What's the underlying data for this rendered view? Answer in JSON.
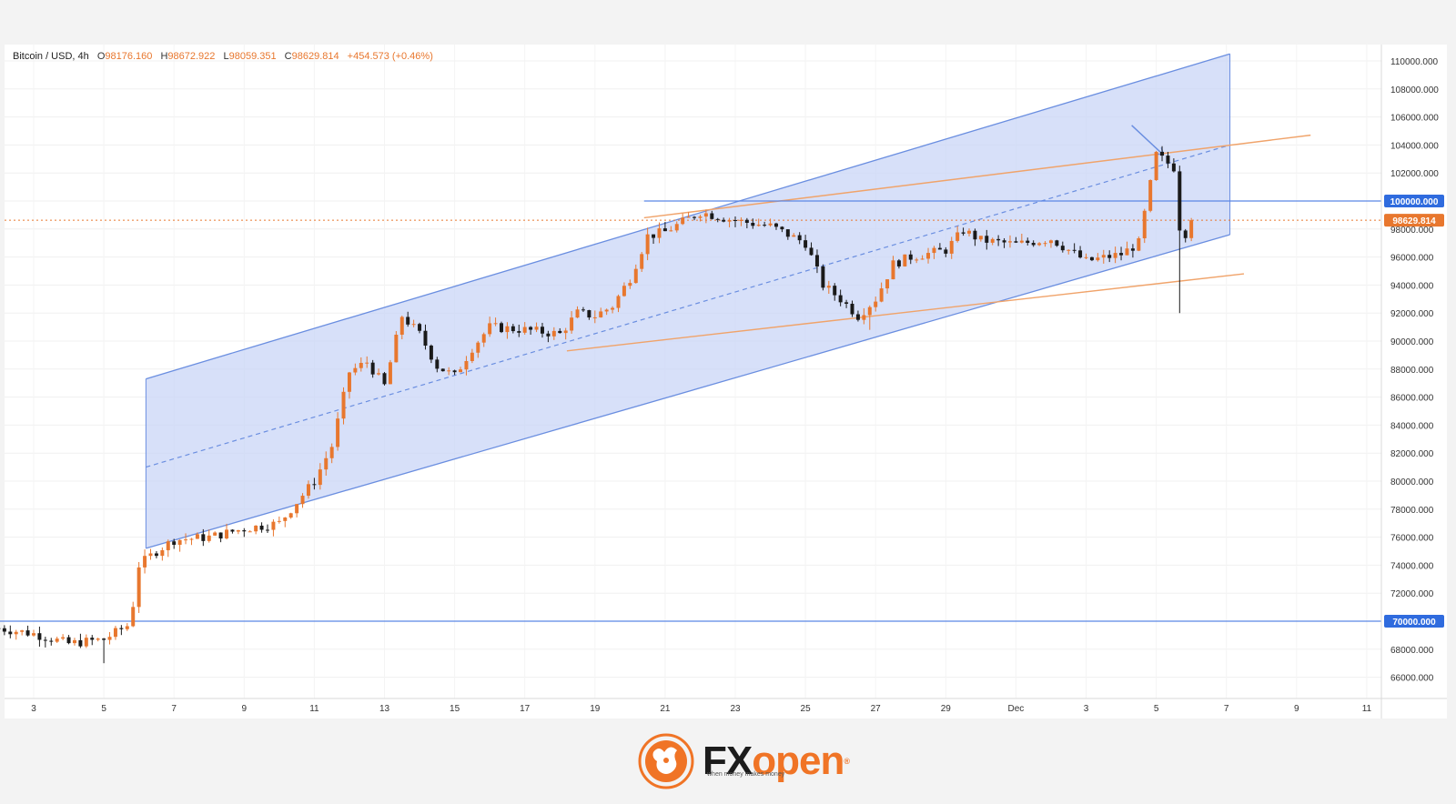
{
  "header": {
    "symbol": "Bitcoin / USD, 4h",
    "o_label": "O",
    "o_value": "98176.160",
    "h_label": "H",
    "h_value": "98672.922",
    "l_label": "L",
    "l_value": "98059.351",
    "c_label": "C",
    "c_value": "98629.814",
    "change": "+454.573 (+0.46%)"
  },
  "logo": {
    "brand_fx": "FX",
    "brand_open": "open",
    "reg": "®",
    "tagline": "when money makes money"
  },
  "colors": {
    "up": "#e8772e",
    "down": "#1a1a1a",
    "channel_fill": "#c9d6f7",
    "channel_line": "#6a8ee0",
    "orange_line": "#f0a36a",
    "level_line": "#5b86e5",
    "price_tag": "#e8772e",
    "level_tag": "#2f6bde"
  },
  "chart_data": {
    "type": "candlestick",
    "symbol": "Bitcoin / USD",
    "timeframe": "4h",
    "ylim": [
      64000,
      111000
    ],
    "y_ticks": [
      110000,
      108000,
      106000,
      104000,
      102000,
      100000,
      98000,
      96000,
      94000,
      92000,
      90000,
      88000,
      86000,
      84000,
      82000,
      80000,
      78000,
      76000,
      74000,
      72000,
      70000,
      68000,
      66000
    ],
    "y_tick_labels": [
      "110000.000",
      "108000.000",
      "106000.000",
      "104000.000",
      "102000.000",
      "100000.000",
      "98000.000",
      "96000.000",
      "94000.000",
      "92000.000",
      "90000.000",
      "88000.000",
      "86000.000",
      "84000.000",
      "82000.000",
      "80000.000",
      "78000.000",
      "76000.000",
      "74000.000",
      "72000.000",
      "70000.000",
      "68000.000",
      "66000.000"
    ],
    "x_ticks": [
      {
        "label": "3",
        "day": 3
      },
      {
        "label": "5",
        "day": 5
      },
      {
        "label": "7",
        "day": 7
      },
      {
        "label": "9",
        "day": 9
      },
      {
        "label": "11",
        "day": 11
      },
      {
        "label": "13",
        "day": 13
      },
      {
        "label": "15",
        "day": 15
      },
      {
        "label": "17",
        "day": 17
      },
      {
        "label": "19",
        "day": 19
      },
      {
        "label": "21",
        "day": 21
      },
      {
        "label": "23",
        "day": 23
      },
      {
        "label": "25",
        "day": 25
      },
      {
        "label": "27",
        "day": 27
      },
      {
        "label": "29",
        "day": 29
      },
      {
        "label": "Dec",
        "day": 31
      },
      {
        "label": "3",
        "day": 33
      },
      {
        "label": "5",
        "day": 35
      },
      {
        "label": "7",
        "day": 37
      },
      {
        "label": "9",
        "day": 39
      },
      {
        "label": "11",
        "day": 41
      }
    ],
    "x_unit": "day (November; 31 = Dec 1)",
    "daily_closes": [
      [
        2,
        69500
      ],
      [
        3,
        69100
      ],
      [
        4,
        68400
      ],
      [
        5,
        68700
      ],
      [
        5.75,
        69800
      ],
      [
        6,
        74000
      ],
      [
        6.5,
        75000
      ],
      [
        7,
        75800
      ],
      [
        8,
        76000
      ],
      [
        9,
        76600
      ],
      [
        10,
        77000
      ],
      [
        10.5,
        78500
      ],
      [
        11,
        80000
      ],
      [
        11.5,
        82500
      ],
      [
        12,
        87800
      ],
      [
        12.5,
        88500
      ],
      [
        13,
        86800
      ],
      [
        13.5,
        91800
      ],
      [
        14,
        90500
      ],
      [
        14.5,
        88200
      ],
      [
        15,
        87500
      ],
      [
        15.5,
        89500
      ],
      [
        16,
        91000
      ],
      [
        17,
        90800
      ],
      [
        18,
        90500
      ],
      [
        18.5,
        92000
      ],
      [
        19,
        91800
      ],
      [
        19.5,
        92500
      ],
      [
        20,
        94500
      ],
      [
        20.5,
        97500
      ],
      [
        21,
        97800
      ],
      [
        22,
        99200
      ],
      [
        23,
        98600
      ],
      [
        24,
        98200
      ],
      [
        25,
        97000
      ],
      [
        25.5,
        94000
      ],
      [
        26,
        93000
      ],
      [
        26.5,
        91800
      ],
      [
        27,
        93000
      ],
      [
        27.5,
        95500
      ],
      [
        28,
        96000
      ],
      [
        29,
        96500
      ],
      [
        29.5,
        97900
      ],
      [
        30,
        97200
      ],
      [
        31,
        96900
      ],
      [
        32,
        97300
      ],
      [
        33,
        95700
      ],
      [
        34,
        96200
      ],
      [
        34.5,
        97000
      ],
      [
        35,
        103300
      ],
      [
        35.5,
        102400
      ],
      [
        35.7,
        97300
      ],
      [
        35.9,
        97900
      ],
      [
        36,
        98629.814
      ]
    ],
    "current_price": 98629.814,
    "price_tag": "98629.814",
    "levels": [
      {
        "price": 100000,
        "label": "100000.000",
        "from_day": 20.4
      },
      {
        "price": 70000,
        "label": "70000.000",
        "from_day": 2
      }
    ],
    "annotations": [
      {
        "kind": "ascending_channel",
        "from_day": 6.2,
        "to_day": 37.1,
        "upper": [
          87300,
          110500
        ],
        "middle": [
          81000,
          104000
        ],
        "lower": [
          75200,
          97600
        ]
      },
      {
        "kind": "trendline",
        "from": [
          20.4,
          98800
        ],
        "to": [
          39.4,
          104700
        ]
      },
      {
        "kind": "trendline",
        "from": [
          18.2,
          89300
        ],
        "to": [
          37.5,
          94800
        ]
      },
      {
        "kind": "arrow",
        "from": [
          34.3,
          105400
        ],
        "to": [
          35.2,
          103300
        ]
      }
    ]
  }
}
